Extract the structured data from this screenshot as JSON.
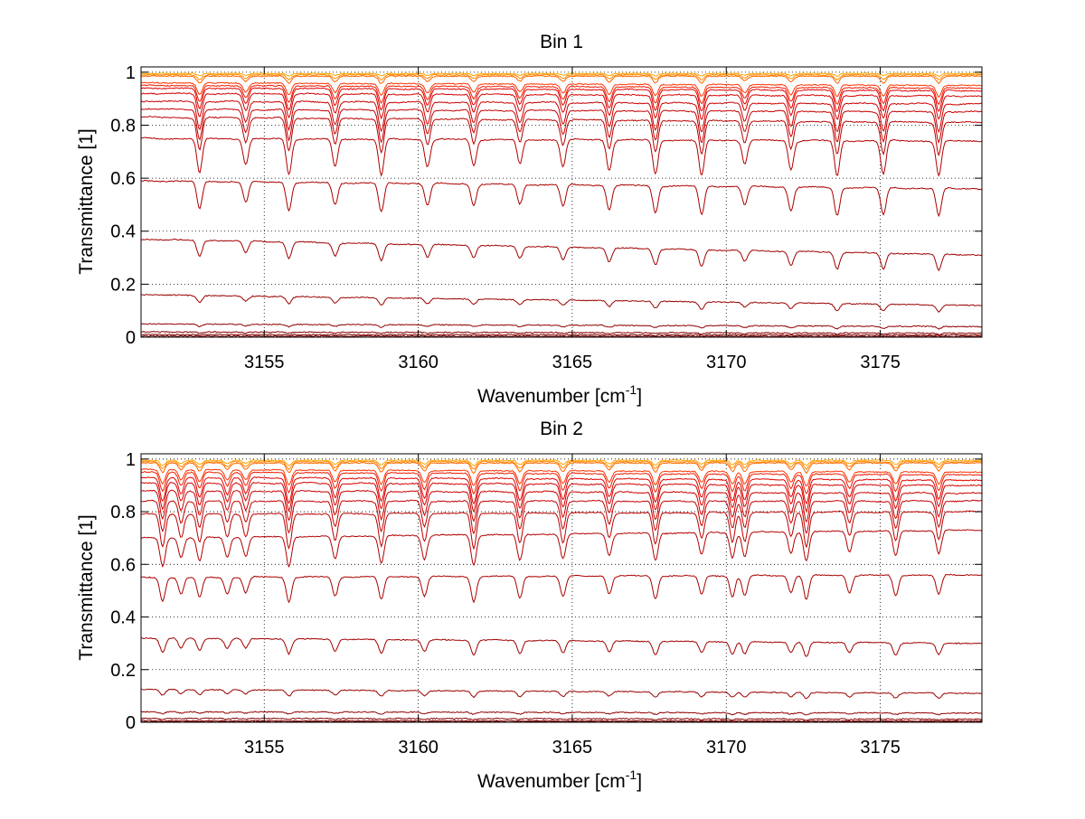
{
  "chart_data": [
    {
      "type": "line",
      "title": "Bin 1",
      "xlabel": "Wavenumber [cm",
      "xlabel_sup": "-1",
      "xlabel_close": "]",
      "ylabel": "Transmittance [1]",
      "xlim": [
        3151,
        3178.3
      ],
      "ylim": [
        0,
        1.02
      ],
      "xticks": [
        3155,
        3160,
        3165,
        3170,
        3175
      ],
      "yticks": [
        0,
        0.2,
        0.4,
        0.6,
        0.8,
        1
      ],
      "xtick_labels": [
        "3155",
        "3160",
        "3165",
        "3170",
        "3175"
      ],
      "ytick_labels": [
        "0",
        "0.2",
        "0.4",
        "0.6",
        "0.8",
        "1"
      ],
      "grid": "dotted",
      "legend": "none",
      "line_centers": [
        3152.9,
        3154.4,
        3155.8,
        3157.3,
        3158.8,
        3160.3,
        3161.8,
        3163.3,
        3164.7,
        3166.2,
        3167.7,
        3169.2,
        3170.6,
        3172.1,
        3173.6,
        3175.1,
        3176.9
      ],
      "series": [
        {
          "baseline": 0.995,
          "baseline_end": 0.995,
          "depth": 0.01,
          "color": "#ffa500"
        },
        {
          "baseline": 0.99,
          "baseline_end": 0.99,
          "depth": 0.02,
          "color": "#ff8c00"
        },
        {
          "baseline": 0.985,
          "baseline_end": 0.985,
          "depth": 0.03,
          "color": "#ff6600"
        },
        {
          "baseline": 0.96,
          "baseline_end": 0.95,
          "depth": 0.05,
          "color": "#ff3300"
        },
        {
          "baseline": 0.95,
          "baseline_end": 0.94,
          "depth": 0.07,
          "color": "#ee1a00"
        },
        {
          "baseline": 0.94,
          "baseline_end": 0.93,
          "depth": 0.09,
          "color": "#e00000"
        },
        {
          "baseline": 0.92,
          "baseline_end": 0.91,
          "depth": 0.1,
          "color": "#d40000"
        },
        {
          "baseline": 0.89,
          "baseline_end": 0.88,
          "depth": 0.12,
          "color": "#cc0000"
        },
        {
          "baseline": 0.86,
          "baseline_end": 0.85,
          "depth": 0.13,
          "color": "#c40000"
        },
        {
          "baseline": 0.83,
          "baseline_end": 0.81,
          "depth": 0.14,
          "color": "#bb0000"
        },
        {
          "baseline": 0.75,
          "baseline_end": 0.74,
          "depth": 0.15,
          "color": "#b30000"
        },
        {
          "baseline": 0.59,
          "baseline_end": 0.56,
          "depth": 0.12,
          "color": "#aa0000"
        },
        {
          "baseline": 0.37,
          "baseline_end": 0.31,
          "depth": 0.07,
          "color": "#a00000"
        },
        {
          "baseline": 0.16,
          "baseline_end": 0.12,
          "depth": 0.03,
          "color": "#990000"
        },
        {
          "baseline": 0.05,
          "baseline_end": 0.04,
          "depth": 0.01,
          "color": "#900000"
        },
        {
          "baseline": 0.02,
          "baseline_end": 0.015,
          "depth": 0.005,
          "color": "#880000"
        },
        {
          "baseline": 0.01,
          "baseline_end": 0.008,
          "depth": 0.002,
          "color": "#800000"
        },
        {
          "baseline": 0.004,
          "baseline_end": 0.003,
          "depth": 0.001,
          "color": "#700000"
        }
      ]
    },
    {
      "type": "line",
      "title": "Bin 2",
      "xlabel": "Wavenumber [cm",
      "xlabel_sup": "-1",
      "xlabel_close": "]",
      "ylabel": "Transmittance [1]",
      "xlim": [
        3151,
        3178.3
      ],
      "ylim": [
        0,
        1.02
      ],
      "xticks": [
        3155,
        3160,
        3165,
        3170,
        3175
      ],
      "yticks": [
        0,
        0.2,
        0.4,
        0.6,
        0.8,
        1
      ],
      "xtick_labels": [
        "3155",
        "3160",
        "3165",
        "3170",
        "3175"
      ],
      "ytick_labels": [
        "0",
        "0.2",
        "0.4",
        "0.6",
        "0.8",
        "1"
      ],
      "grid": "dotted",
      "legend": "none",
      "line_centers": [
        3151.7,
        3152.3,
        3152.9,
        3153.8,
        3154.4,
        3155.8,
        3157.3,
        3158.8,
        3160.2,
        3161.8,
        3163.3,
        3164.7,
        3166.2,
        3167.7,
        3169.2,
        3170.2,
        3170.6,
        3172.1,
        3172.6,
        3174.0,
        3175.5,
        3176.9
      ],
      "series": [
        {
          "baseline": 0.995,
          "baseline_end": 0.995,
          "depth": 0.02,
          "color": "#ffa500"
        },
        {
          "baseline": 0.99,
          "baseline_end": 0.99,
          "depth": 0.03,
          "color": "#ff8c00"
        },
        {
          "baseline": 0.985,
          "baseline_end": 0.985,
          "depth": 0.04,
          "color": "#ff6600"
        },
        {
          "baseline": 0.96,
          "baseline_end": 0.95,
          "depth": 0.06,
          "color": "#ff3300"
        },
        {
          "baseline": 0.95,
          "baseline_end": 0.94,
          "depth": 0.08,
          "color": "#ee1a00"
        },
        {
          "baseline": 0.93,
          "baseline_end": 0.92,
          "depth": 0.1,
          "color": "#e00000"
        },
        {
          "baseline": 0.91,
          "baseline_end": 0.9,
          "depth": 0.11,
          "color": "#d40000"
        },
        {
          "baseline": 0.88,
          "baseline_end": 0.87,
          "depth": 0.12,
          "color": "#cc0000"
        },
        {
          "baseline": 0.84,
          "baseline_end": 0.84,
          "depth": 0.13,
          "color": "#c40000"
        },
        {
          "baseline": 0.79,
          "baseline_end": 0.8,
          "depth": 0.14,
          "color": "#bb0000"
        },
        {
          "baseline": 0.7,
          "baseline_end": 0.73,
          "depth": 0.12,
          "color": "#b30000"
        },
        {
          "baseline": 0.55,
          "baseline_end": 0.56,
          "depth": 0.1,
          "color": "#aa0000"
        },
        {
          "baseline": 0.32,
          "baseline_end": 0.3,
          "depth": 0.06,
          "color": "#a00000"
        },
        {
          "baseline": 0.125,
          "baseline_end": 0.11,
          "depth": 0.025,
          "color": "#990000"
        },
        {
          "baseline": 0.04,
          "baseline_end": 0.035,
          "depth": 0.008,
          "color": "#900000"
        },
        {
          "baseline": 0.015,
          "baseline_end": 0.012,
          "depth": 0.004,
          "color": "#880000"
        },
        {
          "baseline": 0.006,
          "baseline_end": 0.005,
          "depth": 0.002,
          "color": "#800000"
        },
        {
          "baseline": 0.002,
          "baseline_end": 0.002,
          "depth": 0.001,
          "color": "#700000"
        }
      ]
    }
  ]
}
